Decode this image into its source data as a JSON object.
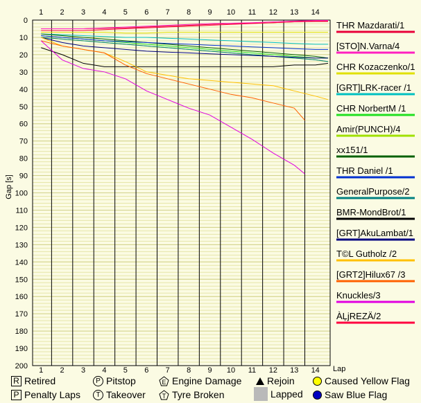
{
  "chart_data": {
    "type": "line",
    "ylabel": "Gap [s]",
    "xlabel": "Lap",
    "xlim": [
      0.6,
      14.7
    ],
    "ylim": [
      0,
      200
    ],
    "y_inverted": true,
    "x_ticks": [
      1,
      2,
      3,
      4,
      5,
      6,
      7,
      8,
      9,
      10,
      11,
      12,
      13,
      14
    ],
    "y_ticks": [
      0,
      10,
      20,
      30,
      40,
      50,
      60,
      70,
      80,
      90,
      100,
      110,
      120,
      130,
      140,
      150,
      160,
      170,
      180,
      190,
      200
    ],
    "grid": true,
    "legend_position": "right",
    "series": [
      {
        "name": "THR Mazdarati/1",
        "color": "#e8003a",
        "x": [
          1,
          2,
          3,
          4,
          5,
          6,
          7,
          8,
          9,
          10,
          11,
          12,
          13,
          14,
          14.6
        ],
        "y": [
          5,
          5,
          5,
          4.8,
          4.5,
          4,
          3.5,
          3,
          2.5,
          2,
          1.8,
          1.5,
          1,
          0.5,
          0.5
        ]
      },
      {
        "name": "[STO]N.Varna/4",
        "color": "#ff20c0",
        "x": [
          1,
          2,
          3,
          4,
          5,
          6,
          7,
          8,
          9,
          10,
          11,
          12,
          13,
          14,
          14.6
        ],
        "y": [
          5,
          5,
          5,
          4.5,
          4,
          3.5,
          3,
          2.5,
          2,
          1.8,
          1.5,
          1,
          0.5,
          0.2,
          0.2
        ]
      },
      {
        "name": "CHR Kozaczenko/1",
        "color": "#e0e000",
        "x": [
          1,
          2,
          3,
          4,
          5,
          6,
          7,
          8,
          9,
          10,
          11,
          12,
          13,
          14,
          14.6
        ],
        "y": [
          7,
          7,
          7,
          7,
          7.5,
          7.5,
          7,
          7,
          7,
          7,
          7,
          7,
          7,
          7,
          7
        ]
      },
      {
        "name": "[GRT]LRK-racer /1",
        "color": "#00c0c0",
        "x": [
          1,
          2,
          3,
          4,
          5,
          6,
          7,
          8,
          9,
          10,
          11,
          12,
          13,
          14,
          14.6
        ],
        "y": [
          8,
          8.5,
          9,
          9.5,
          10,
          10,
          10.5,
          11,
          11.5,
          12,
          12.5,
          13,
          13.5,
          14,
          14
        ]
      },
      {
        "name": "CHR NorbertM /1",
        "color": "#20e020",
        "x": [
          1,
          2,
          3,
          4,
          5,
          6,
          7,
          8,
          9,
          10,
          11,
          12,
          13,
          14,
          14.6
        ],
        "y": [
          9,
          10,
          11,
          12,
          13,
          14,
          15,
          16,
          17,
          18,
          19,
          20,
          21,
          22,
          22
        ]
      },
      {
        "name": "Amir(PUNCH)/4",
        "color": "#a0e000",
        "x": [
          1,
          2,
          3,
          4,
          5,
          6,
          7,
          8,
          9,
          10,
          11,
          12,
          13,
          14,
          14.6
        ],
        "y": [
          10,
          11,
          12,
          13,
          14,
          15,
          16,
          17,
          18,
          19,
          20,
          21,
          22,
          23,
          24
        ]
      },
      {
        "name": "xx151/1",
        "color": "#006000",
        "x": [
          1,
          2,
          3,
          4,
          5,
          6,
          7,
          8,
          9,
          10,
          11,
          12,
          13,
          14,
          14.6
        ],
        "y": [
          8,
          9,
          10,
          11,
          12,
          13,
          14,
          15,
          16,
          17,
          18,
          19,
          20,
          21,
          22
        ]
      },
      {
        "name": "THR Daniel /1",
        "color": "#0030d0",
        "x": [
          1,
          2,
          3,
          4,
          5,
          6,
          7,
          8,
          9,
          10,
          11,
          12,
          13,
          14,
          14.6
        ],
        "y": [
          9,
          10,
          11,
          12,
          12.5,
          13,
          13.5,
          14,
          14.5,
          15,
          15.5,
          16,
          16.5,
          17,
          17
        ]
      },
      {
        "name": "GeneralPurpose/2",
        "color": "#008080",
        "x": [
          1,
          2,
          3,
          4,
          5,
          6,
          7,
          8,
          9,
          10,
          11,
          12,
          13,
          14,
          14.6
        ],
        "y": [
          10,
          11,
          12,
          13,
          14,
          15,
          16,
          17,
          18,
          19,
          20,
          21,
          22,
          23,
          24
        ]
      },
      {
        "name": "BMR-MondBrot/1",
        "color": "#000000",
        "x": [
          1,
          2,
          3,
          4,
          5,
          6,
          7,
          8,
          9,
          10,
          11,
          12,
          13,
          14,
          14.6
        ],
        "y": [
          16,
          20,
          25,
          27,
          27,
          27,
          27,
          27,
          27,
          27,
          27,
          27,
          26,
          26,
          25
        ]
      },
      {
        "name": "[GRT]AkuLambat/1",
        "color": "#000080",
        "x": [
          1,
          2,
          3,
          4,
          5,
          6,
          7,
          8,
          9,
          10,
          11,
          12,
          13,
          14,
          14.6
        ],
        "y": [
          10,
          13,
          15,
          16,
          17,
          18,
          18.5,
          19,
          19.5,
          20,
          20.5,
          21,
          21.5,
          22,
          22
        ]
      },
      {
        "name": "T©L Gutholz /2",
        "color": "#ffc000",
        "x": [
          1,
          2,
          3,
          4,
          5,
          6,
          7,
          8,
          9,
          10,
          11,
          12,
          13,
          14,
          14.6
        ],
        "y": [
          10,
          15,
          17,
          19,
          24,
          30,
          32,
          34,
          35,
          36,
          37,
          38,
          41,
          44,
          46
        ]
      },
      {
        "name": "[GRT2]Hilux67 /3",
        "color": "#ff6000",
        "x": [
          1,
          2,
          3,
          4,
          5,
          6,
          7,
          8,
          9,
          10,
          11,
          12,
          13,
          13.5
        ],
        "y": [
          12,
          15,
          17,
          19,
          26,
          31,
          34,
          37,
          40,
          43,
          45,
          48,
          51,
          58
        ]
      },
      {
        "name": "Knuckles/3",
        "color": "#e000e0",
        "x": [
          1,
          2,
          3,
          4,
          5,
          6,
          7,
          8,
          9,
          10,
          11,
          12,
          13,
          13.5
        ],
        "y": [
          12,
          23,
          28,
          30,
          34,
          41,
          46,
          51,
          55,
          62,
          69,
          77,
          84,
          89
        ]
      },
      {
        "name": "ÀĻjREZÄ/2",
        "color": "#ff0040",
        "x": [
          1,
          2,
          3,
          4,
          5,
          6,
          7,
          8,
          9,
          10,
          11,
          12,
          13,
          14,
          14.6
        ],
        "y": [
          6,
          6,
          6,
          5.5,
          5,
          4.5,
          4,
          3.5,
          3,
          2.5,
          2,
          1.5,
          1,
          0.8,
          0.8
        ]
      }
    ]
  },
  "footer_legend": {
    "retired": {
      "glyph": "R",
      "label": "Retired"
    },
    "penalty": {
      "glyph": "P",
      "label": "Penalty Laps"
    },
    "pitstop": {
      "glyph": "P",
      "label": "Pitstop"
    },
    "takeover": {
      "glyph": "T",
      "label": "Takeover"
    },
    "engine": {
      "glyph": "E",
      "label": "Engine Damage"
    },
    "tyre": {
      "glyph": "T",
      "label": "Tyre Broken"
    },
    "rejoin": {
      "label": "Rejoin"
    },
    "lapped": {
      "label": "Lapped"
    },
    "yellow": {
      "label": "Caused Yellow Flag",
      "color": "#ffff00"
    },
    "blue": {
      "label": "Saw Blue Flag",
      "color": "#0000c0"
    }
  }
}
